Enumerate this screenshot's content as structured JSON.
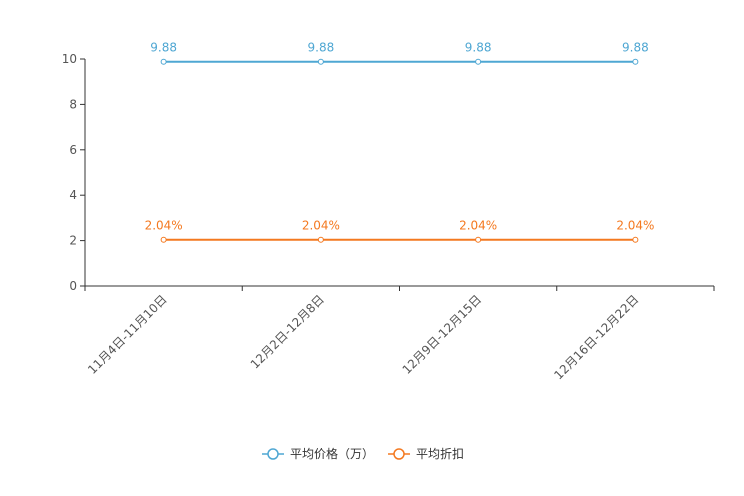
{
  "chart_data": {
    "type": "line",
    "categories": [
      "11月4日-11月10日",
      "12月2日-12月8日",
      "12月9日-12月15日",
      "12月16日-12月22日"
    ],
    "ylim": [
      0,
      10
    ],
    "yticks": [
      "0",
      "2",
      "4",
      "6",
      "8",
      "10"
    ],
    "series": [
      {
        "name": "平均价格（万）",
        "values": [
          9.88,
          9.88,
          9.88,
          9.88
        ],
        "labels": [
          "9.88",
          "9.88",
          "9.88",
          "9.88"
        ],
        "color": "#4fa7d3"
      },
      {
        "name": "平均折扣",
        "values": [
          2.04,
          2.04,
          2.04,
          2.04
        ],
        "labels": [
          "2.04%",
          "2.04%",
          "2.04%",
          "2.04%"
        ],
        "color": "#f47920"
      }
    ]
  }
}
